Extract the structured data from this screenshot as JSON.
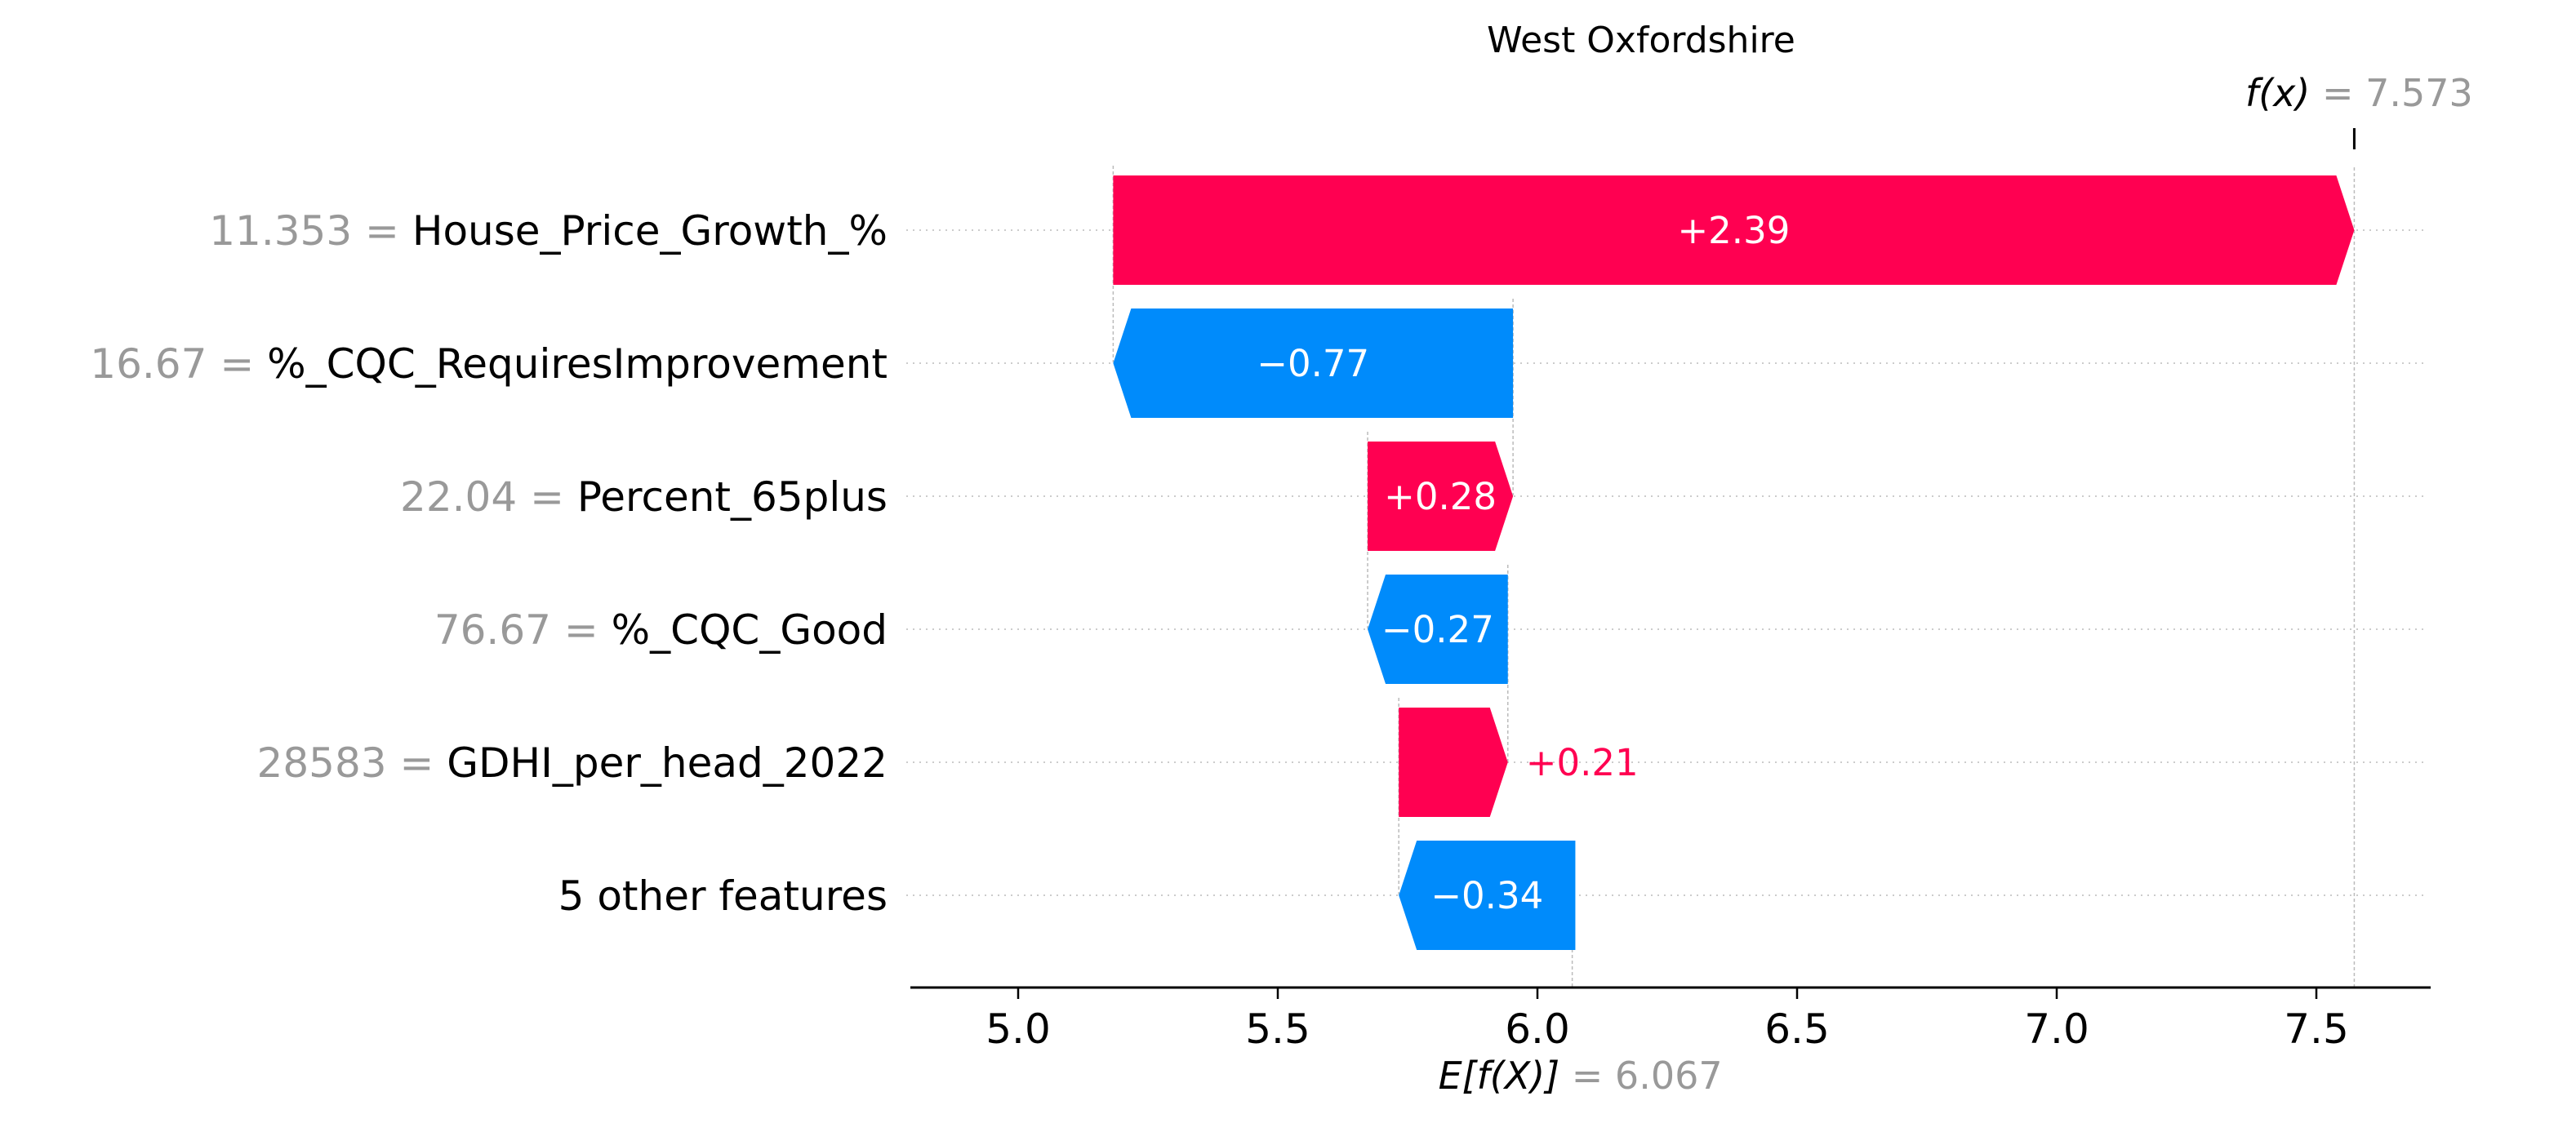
{
  "chart_data": {
    "type": "bar",
    "subtype": "shap-waterfall",
    "title": "West Oxfordshire",
    "base_value": 6.067,
    "output_value": 7.573,
    "base_label_prefix": "E[f(X)]",
    "output_label_prefix": "f(x)",
    "base_label_value": "= 6.067",
    "output_label_value": "= 7.573",
    "xlim": [
      4.8,
      7.72
    ],
    "xticks": [
      5.0,
      5.5,
      6.0,
      6.5,
      7.0,
      7.5
    ],
    "xtick_labels": [
      "5.0",
      "5.5",
      "6.0",
      "6.5",
      "7.0",
      "7.5"
    ],
    "features": [
      {
        "value_text": "11.353 =",
        "name": "House_Price_Growth_%",
        "contribution": 2.39,
        "label": "+2.39"
      },
      {
        "value_text": "16.67 =",
        "name": "%_CQC_RequiresImprovement",
        "contribution": -0.77,
        "label": "−0.77"
      },
      {
        "value_text": "22.04 =",
        "name": "Percent_65plus",
        "contribution": 0.28,
        "label": "+0.28"
      },
      {
        "value_text": "76.67 =",
        "name": "%_CQC_Good",
        "contribution": -0.27,
        "label": "−0.27"
      },
      {
        "value_text": "28583 =",
        "name": "GDHI_per_head_2022",
        "contribution": 0.21,
        "label": "+0.21"
      },
      {
        "value_text": "",
        "name": "5 other features",
        "contribution": -0.34,
        "label": "−0.34"
      }
    ],
    "colors": {
      "positive": "#ff0051",
      "negative": "#008bfb",
      "grey_text": "#999999",
      "axis": "#000000"
    },
    "grid": false
  }
}
